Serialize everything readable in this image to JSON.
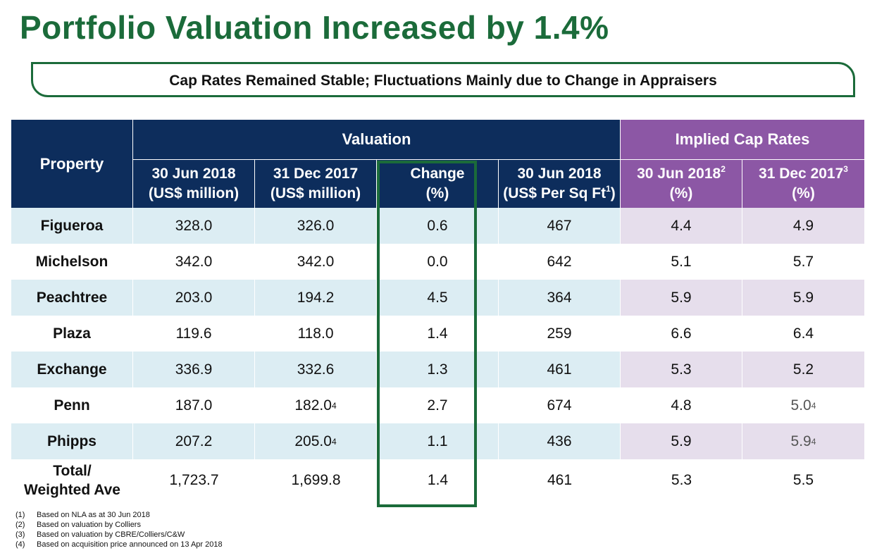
{
  "title": "Portfolio Valuation Increased by 1.4%",
  "banner": "Cap Rates Remained Stable; Fluctuations Mainly due to Change in Appraisers",
  "colors": {
    "title_green": "#1b6b3a",
    "navy": "#0d2d5c",
    "purple": "#8c57a5",
    "row_blue": "#dcedf3",
    "row_lilac": "#e6deec"
  },
  "header": {
    "property": "Property",
    "valuation": "Valuation",
    "implied_cap_rates": "Implied Cap Rates",
    "col_jun_line1": "30 Jun 2018",
    "col_jun_line2": "(US$ million)",
    "col_dec_line1": "31 Dec 2017",
    "col_dec_line2": "(US$ million)",
    "col_change_line1": "Change",
    "col_change_line2": "(%)",
    "col_psf_line1": "30 Jun 2018",
    "col_psf_line2": "(US$ Per Sq Ft",
    "col_psf_sup": "1",
    "col_psf_close": ")",
    "cap_jun_line1": "30 Jun 2018",
    "cap_jun_sup": "2",
    "cap_jun_line2": "(%)",
    "cap_dec_line1": "31 Dec 2017",
    "cap_dec_sup": "3",
    "cap_dec_line2": "(%)"
  },
  "rows": [
    {
      "property": "Figueroa",
      "jun": "328.0",
      "dec": "326.0",
      "dec_sup": "",
      "change": "0.6",
      "psf": "467",
      "cap_jun": "4.4",
      "cap_dec": "4.9",
      "cap_dec_sup": ""
    },
    {
      "property": "Michelson",
      "jun": "342.0",
      "dec": "342.0",
      "dec_sup": "",
      "change": "0.0",
      "psf": "642",
      "cap_jun": "5.1",
      "cap_dec": "5.7",
      "cap_dec_sup": ""
    },
    {
      "property": "Peachtree",
      "jun": "203.0",
      "dec": "194.2",
      "dec_sup": "",
      "change": "4.5",
      "psf": "364",
      "cap_jun": "5.9",
      "cap_dec": "5.9",
      "cap_dec_sup": ""
    },
    {
      "property": "Plaza",
      "jun": "119.6",
      "dec": "118.0",
      "dec_sup": "",
      "change": "1.4",
      "psf": "259",
      "cap_jun": "6.6",
      "cap_dec": "6.4",
      "cap_dec_sup": ""
    },
    {
      "property": "Exchange",
      "jun": "336.9",
      "dec": "332.6",
      "dec_sup": "",
      "change": "1.3",
      "psf": "461",
      "cap_jun": "5.3",
      "cap_dec": "5.2",
      "cap_dec_sup": ""
    },
    {
      "property": "Penn",
      "jun": "187.0",
      "dec": "182.0",
      "dec_sup": "4",
      "change": "2.7",
      "psf": "674",
      "cap_jun": "4.8",
      "cap_dec": "5.0",
      "cap_dec_sup": "4"
    },
    {
      "property": "Phipps",
      "jun": "207.2",
      "dec": "205.0",
      "dec_sup": "4",
      "change": "1.1",
      "psf": "436",
      "cap_jun": "5.9",
      "cap_dec": "5.9",
      "cap_dec_sup": "4"
    }
  ],
  "total": {
    "label_line1": "Total/",
    "label_line2": "Weighted Ave",
    "jun": "1,723.7",
    "dec": "1,699.8",
    "change": "1.4",
    "psf": "461",
    "cap_jun": "5.3",
    "cap_dec": "5.5"
  },
  "footnotes": [
    {
      "num": "(1)",
      "text": "Based on NLA as at 30 Jun 2018"
    },
    {
      "num": "(2)",
      "text": "Based on valuation by Colliers"
    },
    {
      "num": "(3)",
      "text": "Based on valuation by CBRE/Colliers/C&W"
    },
    {
      "num": "(4)",
      "text": "Based on acquisition price announced on 13 Apr 2018"
    }
  ]
}
